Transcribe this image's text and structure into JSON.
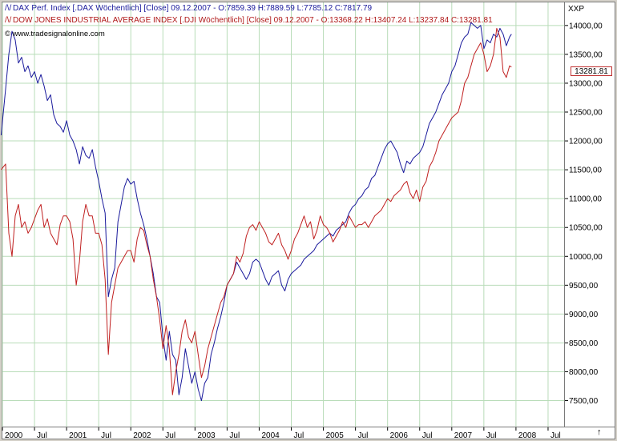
{
  "legend": {
    "dax": {
      "glyph": "/\\/",
      "text": "DAX Perf. Index [.DAX  Wöchentlich] [Close] 09.12.2007 - O:7859.39 H:7889.59 L:7785.12",
      "close": "C:7817.79"
    },
    "dji": {
      "glyph": "/\\/",
      "text": "DOW JONES INDUSTRIAL AVERAGE INDEX [.DJI  Wöchentlich] [Close] 09.12.2007 - O:13368.22 H:13407.24 L:13237.84",
      "close": "C:13281.81"
    },
    "source": "www.tradesignalonline.com"
  },
  "axis": {
    "unit": "XXP",
    "last_value": "13281.81",
    "scroll_glyph": "↑"
  },
  "colors": {
    "dax": "#1a1a9c",
    "dji": "#c02020",
    "grid": "#b8dcb8",
    "axis": "#7a7a7a"
  },
  "chart_data": {
    "type": "line",
    "grid": true,
    "legend_position": "top-left",
    "ylim": [
      7050,
      14400
    ],
    "xlim": [
      2000.0,
      2008.75
    ],
    "y_ticks": [
      {
        "value": 7500,
        "label": "7500,00"
      },
      {
        "value": 8000,
        "label": "8000,00"
      },
      {
        "value": 8500,
        "label": "8500,00"
      },
      {
        "value": 9000,
        "label": "9000,00"
      },
      {
        "value": 9500,
        "label": "9500,00"
      },
      {
        "value": 10000,
        "label": "10000,00"
      },
      {
        "value": 10500,
        "label": "10500,00"
      },
      {
        "value": 11000,
        "label": "11000,00"
      },
      {
        "value": 11500,
        "label": "11500,00"
      },
      {
        "value": 12000,
        "label": "12000,00"
      },
      {
        "value": 12500,
        "label": "12500,00"
      },
      {
        "value": 13000,
        "label": "13000,00"
      },
      {
        "value": 13500,
        "label": "13500,00"
      },
      {
        "value": 14000,
        "label": "14000,00"
      }
    ],
    "x_ticks": [
      {
        "value": 2000.0,
        "label": "2000"
      },
      {
        "value": 2000.5,
        "label": "Jul"
      },
      {
        "value": 2001.0,
        "label": "2001"
      },
      {
        "value": 2001.5,
        "label": "Jul"
      },
      {
        "value": 2002.0,
        "label": "2002"
      },
      {
        "value": 2002.5,
        "label": "Jul"
      },
      {
        "value": 2003.0,
        "label": "2003"
      },
      {
        "value": 2003.5,
        "label": "Jul"
      },
      {
        "value": 2004.0,
        "label": "2004"
      },
      {
        "value": 2004.5,
        "label": "Jul"
      },
      {
        "value": 2005.0,
        "label": "2005"
      },
      {
        "value": 2005.5,
        "label": "Jul"
      },
      {
        "value": 2006.0,
        "label": "2006"
      },
      {
        "value": 2006.5,
        "label": "Jul"
      },
      {
        "value": 2007.0,
        "label": "2007"
      },
      {
        "value": 2007.5,
        "label": "Jul"
      },
      {
        "value": 2008.0,
        "label": "2008"
      },
      {
        "value": 2008.5,
        "label": "Jul"
      }
    ],
    "series": [
      {
        "name": "DAX Perf. Index",
        "color": "#1a1a9c",
        "x": [
          1999.98,
          2000.05,
          2000.1,
          2000.15,
          2000.2,
          2000.25,
          2000.3,
          2000.35,
          2000.4,
          2000.45,
          2000.5,
          2000.55,
          2000.6,
          2000.65,
          2000.7,
          2000.75,
          2000.8,
          2000.85,
          2000.9,
          2000.95,
          2001.0,
          2001.05,
          2001.1,
          2001.15,
          2001.2,
          2001.25,
          2001.3,
          2001.35,
          2001.4,
          2001.45,
          2001.5,
          2001.55,
          2001.6,
          2001.65,
          2001.7,
          2001.75,
          2001.8,
          2001.85,
          2001.9,
          2001.95,
          2002.0,
          2002.05,
          2002.1,
          2002.15,
          2002.2,
          2002.25,
          2002.3,
          2002.35,
          2002.4,
          2002.45,
          2002.5,
          2002.55,
          2002.6,
          2002.65,
          2002.7,
          2002.75,
          2002.8,
          2002.85,
          2002.9,
          2002.95,
          2003.0,
          2003.05,
          2003.1,
          2003.15,
          2003.2,
          2003.25,
          2003.3,
          2003.35,
          2003.4,
          2003.45,
          2003.5,
          2003.55,
          2003.6,
          2003.65,
          2003.7,
          2003.75,
          2003.8,
          2003.85,
          2003.9,
          2003.95,
          2004.0,
          2004.05,
          2004.1,
          2004.15,
          2004.2,
          2004.25,
          2004.3,
          2004.35,
          2004.4,
          2004.45,
          2004.5,
          2004.55,
          2004.6,
          2004.65,
          2004.7,
          2004.75,
          2004.8,
          2004.85,
          2004.9,
          2004.95,
          2005.0,
          2005.05,
          2005.1,
          2005.15,
          2005.2,
          2005.25,
          2005.3,
          2005.35,
          2005.4,
          2005.45,
          2005.5,
          2005.55,
          2005.6,
          2005.65,
          2005.7,
          2005.75,
          2005.8,
          2005.85,
          2005.9,
          2005.95,
          2006.0,
          2006.05,
          2006.1,
          2006.15,
          2006.2,
          2006.25,
          2006.3,
          2006.35,
          2006.4,
          2006.45,
          2006.5,
          2006.55,
          2006.6,
          2006.65,
          2006.7,
          2006.75,
          2006.8,
          2006.85,
          2006.9,
          2006.95,
          2007.0,
          2007.05,
          2007.1,
          2007.15,
          2007.2,
          2007.25,
          2007.3,
          2007.35,
          2007.4,
          2007.45,
          2007.5,
          2007.55,
          2007.6,
          2007.65,
          2007.7,
          2007.75,
          2007.8,
          2007.85,
          2007.9,
          2007.93
        ],
        "y": [
          12100,
          12900,
          13500,
          13900,
          13750,
          13350,
          13450,
          13200,
          13300,
          13100,
          13200,
          13000,
          13150,
          12950,
          12700,
          12800,
          12450,
          12300,
          12250,
          12150,
          12350,
          12100,
          12000,
          11850,
          11600,
          11900,
          11750,
          11700,
          11850,
          11550,
          11300,
          11000,
          10750,
          9300,
          9600,
          9800,
          10600,
          10900,
          11200,
          11350,
          11250,
          11300,
          11000,
          10750,
          10550,
          10300,
          10000,
          9700,
          9300,
          9200,
          8600,
          8200,
          8700,
          8300,
          8200,
          7600,
          7900,
          8400,
          8100,
          7800,
          8000,
          7700,
          7500,
          7800,
          7900,
          8300,
          8500,
          8750,
          8950,
          9200,
          9500,
          9600,
          9700,
          9900,
          9800,
          9700,
          9600,
          9700,
          9900,
          9950,
          9900,
          9750,
          9600,
          9500,
          9650,
          9700,
          9750,
          9500,
          9400,
          9600,
          9700,
          9750,
          9800,
          9850,
          9950,
          10000,
          10050,
          10100,
          10200,
          10250,
          10300,
          10350,
          10400,
          10350,
          10450,
          10500,
          10550,
          10600,
          10750,
          10850,
          10900,
          11000,
          11050,
          11150,
          11200,
          11350,
          11400,
          11550,
          11700,
          11850,
          11950,
          12000,
          11900,
          11800,
          11600,
          11450,
          11650,
          11600,
          11700,
          11750,
          11800,
          11900,
          12100,
          12300,
          12400,
          12500,
          12650,
          12800,
          12900,
          13000,
          13200,
          13300,
          13500,
          13700,
          13800,
          13850,
          14050,
          14000,
          13950,
          14000,
          13600,
          13750,
          13700,
          13850,
          13800,
          13950,
          13850,
          13650,
          13800,
          13850
        ]
      },
      {
        "name": "DOW JONES INDUSTRIAL AVERAGE INDEX",
        "color": "#c02020",
        "x": [
          1999.98,
          2000.05,
          2000.1,
          2000.15,
          2000.2,
          2000.25,
          2000.3,
          2000.35,
          2000.4,
          2000.45,
          2000.5,
          2000.55,
          2000.6,
          2000.65,
          2000.7,
          2000.75,
          2000.8,
          2000.85,
          2000.9,
          2000.95,
          2001.0,
          2001.05,
          2001.1,
          2001.15,
          2001.2,
          2001.25,
          2001.3,
          2001.35,
          2001.4,
          2001.45,
          2001.5,
          2001.55,
          2001.6,
          2001.65,
          2001.7,
          2001.75,
          2001.8,
          2001.85,
          2001.9,
          2001.95,
          2002.0,
          2002.05,
          2002.1,
          2002.15,
          2002.2,
          2002.25,
          2002.3,
          2002.35,
          2002.4,
          2002.45,
          2002.5,
          2002.55,
          2002.6,
          2002.65,
          2002.7,
          2002.75,
          2002.8,
          2002.85,
          2002.9,
          2002.95,
          2003.0,
          2003.05,
          2003.1,
          2003.15,
          2003.2,
          2003.25,
          2003.3,
          2003.35,
          2003.4,
          2003.45,
          2003.5,
          2003.55,
          2003.6,
          2003.65,
          2003.7,
          2003.75,
          2003.8,
          2003.85,
          2003.9,
          2003.95,
          2004.0,
          2004.05,
          2004.1,
          2004.15,
          2004.2,
          2004.25,
          2004.3,
          2004.35,
          2004.4,
          2004.45,
          2004.5,
          2004.55,
          2004.6,
          2004.65,
          2004.7,
          2004.75,
          2004.8,
          2004.85,
          2004.9,
          2004.95,
          2005.0,
          2005.05,
          2005.1,
          2005.15,
          2005.2,
          2005.25,
          2005.3,
          2005.35,
          2005.4,
          2005.45,
          2005.5,
          2005.55,
          2005.6,
          2005.65,
          2005.7,
          2005.75,
          2005.8,
          2005.85,
          2005.9,
          2005.95,
          2006.0,
          2006.05,
          2006.1,
          2006.15,
          2006.2,
          2006.25,
          2006.3,
          2006.35,
          2006.4,
          2006.45,
          2006.5,
          2006.55,
          2006.6,
          2006.65,
          2006.7,
          2006.75,
          2006.8,
          2006.85,
          2006.9,
          2006.95,
          2007.0,
          2007.05,
          2007.1,
          2007.15,
          2007.2,
          2007.25,
          2007.3,
          2007.35,
          2007.4,
          2007.45,
          2007.5,
          2007.55,
          2007.6,
          2007.65,
          2007.7,
          2007.75,
          2007.8,
          2007.85,
          2007.9,
          2007.93
        ],
        "y": [
          11500,
          11600,
          10400,
          10000,
          10700,
          10900,
          10500,
          10600,
          10400,
          10500,
          10650,
          10800,
          10900,
          10500,
          10650,
          10400,
          10300,
          10200,
          10550,
          10700,
          10700,
          10600,
          10300,
          9500,
          9900,
          10600,
          10900,
          10700,
          10700,
          10400,
          10400,
          10200,
          9600,
          8300,
          9200,
          9500,
          9800,
          9900,
          10000,
          10100,
          10100,
          9900,
          10300,
          10500,
          10450,
          10200,
          10000,
          9600,
          9300,
          8900,
          8400,
          8800,
          8400,
          7600,
          8000,
          8300,
          8700,
          8900,
          8600,
          8500,
          8700,
          8300,
          7900,
          8100,
          8400,
          8600,
          8800,
          9000,
          9200,
          9300,
          9500,
          9600,
          9700,
          10000,
          9900,
          10050,
          10350,
          10500,
          10550,
          10450,
          10600,
          10500,
          10400,
          10250,
          10200,
          10300,
          10400,
          10200,
          10100,
          9950,
          10100,
          10300,
          10400,
          10550,
          10700,
          10500,
          10600,
          10300,
          10450,
          10700,
          10550,
          10500,
          10400,
          10250,
          10350,
          10450,
          10600,
          10500,
          10700,
          10600,
          10500,
          10550,
          10550,
          10600,
          10500,
          10600,
          10700,
          10750,
          10800,
          10900,
          11000,
          10950,
          11050,
          11100,
          11150,
          11250,
          11300,
          11100,
          11000,
          11150,
          10950,
          11200,
          11300,
          11550,
          11650,
          11800,
          12000,
          12100,
          12200,
          12300,
          12400,
          12450,
          12500,
          12700,
          13000,
          13100,
          13300,
          13500,
          13600,
          13700,
          13500,
          13200,
          13300,
          13500,
          13950,
          13800,
          13200,
          13100,
          13300,
          13280
        ]
      }
    ]
  }
}
